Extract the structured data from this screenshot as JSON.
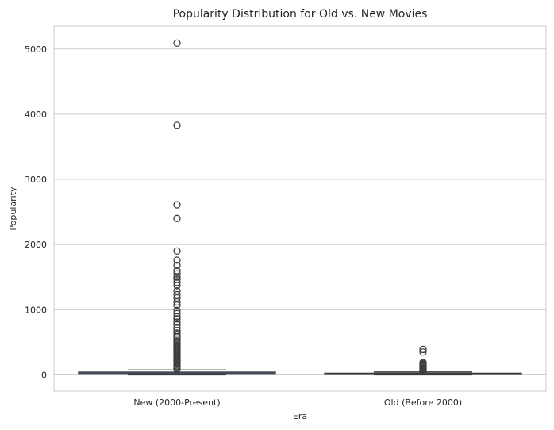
{
  "chart_data": {
    "type": "box",
    "title": "Popularity Distribution for Old vs. New Movies",
    "xlabel": "Era",
    "ylabel": "Popularity",
    "ylim": [
      -250,
      5350
    ],
    "yticks": [
      0,
      1000,
      2000,
      3000,
      4000,
      5000
    ],
    "grid": true,
    "categories": [
      "New (2000-Present)",
      "Old (Before 2000)"
    ],
    "series": [
      {
        "category": "New (2000-Present)",
        "color": "#4c72b0",
        "q1": 10,
        "median": 19,
        "q3": 42,
        "whisker_low": 0,
        "whisker_high": 75,
        "outliers": [
          5090,
          3830,
          2610,
          2400,
          1900,
          1760,
          1680,
          1600,
          1550,
          1500,
          1470,
          1420,
          1370,
          1290,
          1230,
          1180,
          1120,
          1070,
          990,
          940,
          890,
          860,
          810,
          770,
          720,
          680,
          640,
          610,
          580,
          550,
          520,
          500,
          480,
          460,
          440,
          420,
          400,
          380,
          360,
          340,
          320,
          300,
          280,
          260,
          240,
          220,
          200,
          180,
          160,
          140,
          120,
          100,
          85
        ]
      },
      {
        "category": "Old (Before 2000)",
        "color": "#dd8452",
        "q1": 8,
        "median": 14,
        "q3": 25,
        "whisker_low": 0,
        "whisker_high": 45,
        "outliers": [
          390,
          350,
          190,
          175,
          160,
          145,
          130,
          115,
          100,
          85,
          70,
          58,
          50
        ]
      }
    ]
  }
}
